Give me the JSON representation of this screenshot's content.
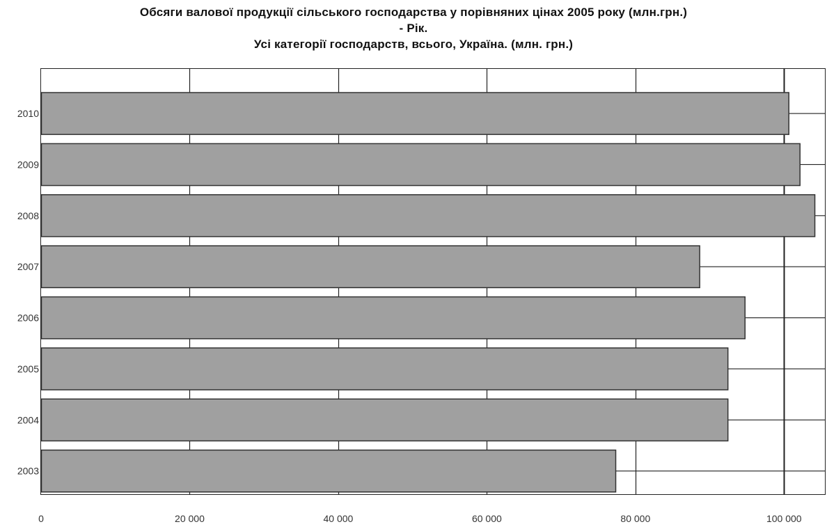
{
  "chart_data": {
    "type": "bar",
    "orientation": "horizontal",
    "title_lines": [
      "Обсяги валової продукції сільського господарства у порівняних цінах 2005 року (млн.грн.)",
      "- Рік.",
      "Усі категорії господарств, всього, Україна. (млн. грн.)"
    ],
    "categories": [
      "2010",
      "2009",
      "2008",
      "2007",
      "2006",
      "2005",
      "2004",
      "2003"
    ],
    "values": [
      100600,
      102100,
      104100,
      88600,
      94700,
      92400,
      92400,
      77300
    ],
    "xlim": [
      0,
      105500
    ],
    "x_ticks": [
      0,
      20000,
      40000,
      60000,
      80000,
      100000
    ],
    "x_tick_labels": [
      "0",
      "20 000",
      "40 000",
      "60 000",
      "80 000",
      "100 000"
    ],
    "grid": true,
    "colors": {
      "bar_fill": "#a0a0a0",
      "bar_stroke": "#333333",
      "grid": "#222222"
    }
  }
}
